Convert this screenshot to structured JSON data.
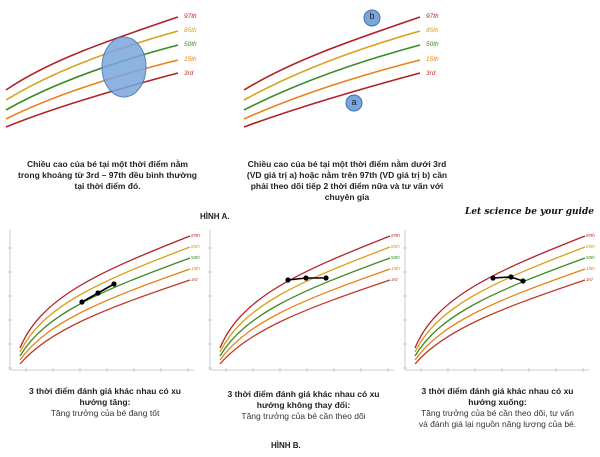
{
  "percentiles": [
    {
      "label": "97th",
      "color": "#b3202a"
    },
    {
      "label": "85th",
      "color": "#d9a018"
    },
    {
      "label": "50th",
      "color": "#3a8a25"
    },
    {
      "label": "15th",
      "color": "#e8821a"
    },
    {
      "label": "3rd",
      "color": "#c0392b"
    }
  ],
  "figure_a": {
    "label": "HÌNH A.",
    "panel1": {
      "caption_lines": [
        "Chiều cao của bé tại một thời điểm nằm",
        "trong khoảng từ 3rd – 97th đều bình thường",
        "tại thời điểm đó."
      ]
    },
    "panel2": {
      "marker_a": "a",
      "marker_b": "b",
      "caption_lines": [
        "Chiều cao của bé tại một thời điểm nằm dưới 3rd",
        "(VD giá trị a) hoặc nằm trên 97th (VD giá trị b) cần",
        "phải theo dõi tiếp 2 thời điểm nữa và tư vấn với",
        "chuyên gia"
      ]
    }
  },
  "slogan": "Let science be your guide",
  "figure_b": {
    "label": "HÌNH B.",
    "panels": [
      {
        "title_lines": [
          "3 thời điểm đánh giá khác nhau có xu",
          "hướng tăng:"
        ],
        "sub_lines": [
          "Tăng trưởng của bé đang tốt"
        ]
      },
      {
        "title_lines": [
          "3 thời điểm đánh giá khác nhau có xu",
          "hướng không thay đổi:"
        ],
        "sub_lines": [
          "Tăng trưởng của bé cần theo dõi"
        ]
      },
      {
        "title_lines": [
          "3 thời điểm đánh giá khác nhau có xu",
          "hướng xuống:"
        ],
        "sub_lines": [
          "Tăng trưởng của bé cần theo dõi, tư vấn",
          "và đánh giá lại nguồn năng lượng của bé."
        ]
      }
    ]
  }
}
